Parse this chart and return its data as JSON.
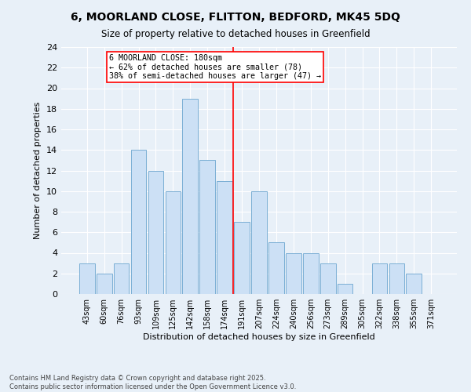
{
  "title_line1": "6, MOORLAND CLOSE, FLITTON, BEDFORD, MK45 5DQ",
  "title_line2": "Size of property relative to detached houses in Greenfield",
  "xlabel": "Distribution of detached houses by size in Greenfield",
  "ylabel": "Number of detached properties",
  "categories": [
    "43sqm",
    "60sqm",
    "76sqm",
    "93sqm",
    "109sqm",
    "125sqm",
    "142sqm",
    "158sqm",
    "174sqm",
    "191sqm",
    "207sqm",
    "224sqm",
    "240sqm",
    "256sqm",
    "273sqm",
    "289sqm",
    "305sqm",
    "322sqm",
    "338sqm",
    "355sqm",
    "371sqm"
  ],
  "values": [
    3,
    2,
    3,
    14,
    12,
    10,
    19,
    13,
    11,
    7,
    10,
    5,
    4,
    4,
    3,
    1,
    0,
    3,
    3,
    2,
    0
  ],
  "bar_color": "#cce0f5",
  "bar_edge_color": "#7bafd4",
  "vline_x": 8.5,
  "annotation_title": "6 MOORLAND CLOSE: 180sqm",
  "annotation_line2": "← 62% of detached houses are smaller (78)",
  "annotation_line3": "38% of semi-detached houses are larger (47) →",
  "ylim": [
    0,
    24
  ],
  "yticks": [
    0,
    2,
    4,
    6,
    8,
    10,
    12,
    14,
    16,
    18,
    20,
    22,
    24
  ],
  "background_color": "#e8f0f8",
  "footer_line1": "Contains HM Land Registry data © Crown copyright and database right 2025.",
  "footer_line2": "Contains public sector information licensed under the Open Government Licence v3.0."
}
